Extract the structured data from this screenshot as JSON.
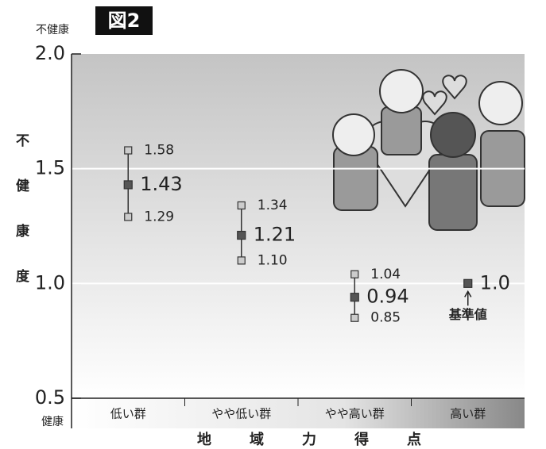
{
  "chart_data": {
    "type": "errorbar",
    "badge": "図2",
    "top_label": "不健康",
    "bottom_label": "健康",
    "y_label": "不健康度",
    "x_label": "地域力得点",
    "annotation": "基準値",
    "categories": [
      "低い群",
      "やや低い群",
      "やや高い群",
      "高い群"
    ],
    "values": [
      1.43,
      1.21,
      0.94,
      1
    ],
    "value_labels": [
      "1.43",
      "1.21",
      "0.94",
      "1.0"
    ],
    "lower": [
      1.29,
      1.1,
      0.85,
      null
    ],
    "lower_labels": [
      "1.29",
      "1.10",
      "0.85",
      null
    ],
    "upper": [
      1.58,
      1.34,
      1.04,
      null
    ],
    "upper_labels": [
      "1.58",
      "1.34",
      "1.04",
      null
    ],
    "color": "#555555",
    "ylim": [
      0.5,
      2
    ],
    "yticks": [
      0.5,
      {
        "value": 1,
        "label": "1.0"
      },
      1.5,
      {
        "value": 2,
        "label": "2.0"
      }
    ],
    "grid": true
  }
}
